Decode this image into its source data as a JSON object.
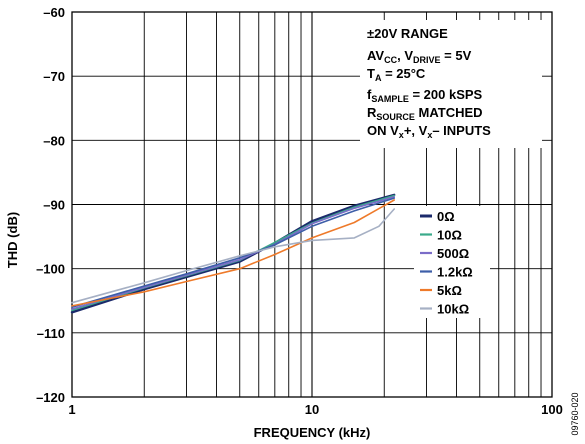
{
  "figure_code": "09760-020",
  "annotation": {
    "range": "±20V RANGE",
    "supply": {
      "a": "AV",
      "a_sub": "CC",
      "b": ", V",
      "b_sub": "DRIVE",
      "c": " = 5V"
    },
    "temp": {
      "a": "T",
      "a_sub": "A",
      "c": " = 25°C"
    },
    "sample": {
      "a": "f",
      "a_sub": "SAMPLE",
      "c": " = 200 kSPS"
    },
    "source": {
      "a": "R",
      "a_sub": "SOURCE",
      "c": " MATCHED"
    },
    "inputs": {
      "a": "ON V",
      "a_sub": "x",
      "b": "+, V",
      "b_sub": "x",
      "c": "– INPUTS"
    }
  },
  "chart_data": {
    "type": "line",
    "xscale": "log",
    "xlabel": "FREQUENCY (kHz)",
    "ylabel": "THD (dB)",
    "xlim": [
      1,
      100
    ],
    "ylim": [
      -120,
      -60
    ],
    "x_ticks": [
      {
        "value": 1,
        "label": "1"
      },
      {
        "value": 10,
        "label": "10"
      },
      {
        "value": 100,
        "label": "100"
      }
    ],
    "y_ticks": [
      {
        "value": -60,
        "label": "–60"
      },
      {
        "value": -70,
        "label": "–70"
      },
      {
        "value": -80,
        "label": "–80"
      },
      {
        "value": -90,
        "label": "–90"
      },
      {
        "value": -100,
        "label": "–100"
      },
      {
        "value": -110,
        "label": "–110"
      },
      {
        "value": -120,
        "label": "–120"
      }
    ],
    "grid": true,
    "legend_position": "right, mid-height",
    "series": [
      {
        "name": "0Ω",
        "color": "#1b2a6b",
        "width": 2.4,
        "points": [
          [
            1,
            -106.8
          ],
          [
            2,
            -103.2
          ],
          [
            3,
            -101.3
          ],
          [
            5,
            -98.9
          ],
          [
            7,
            -96.0
          ],
          [
            10,
            -92.6
          ],
          [
            15,
            -90.2
          ],
          [
            22,
            -88.5
          ]
        ]
      },
      {
        "name": "10Ω",
        "color": "#3aaa8a",
        "width": 1.6,
        "points": [
          [
            1,
            -106.5
          ],
          [
            2,
            -103.0
          ],
          [
            3,
            -101.1
          ],
          [
            5,
            -98.7
          ],
          [
            7,
            -95.9
          ],
          [
            10,
            -92.9
          ],
          [
            15,
            -90.4
          ],
          [
            22,
            -88.6
          ]
        ]
      },
      {
        "name": "500Ω",
        "color": "#7b6cc8",
        "width": 1.6,
        "points": [
          [
            1,
            -106.3
          ],
          [
            2,
            -102.9
          ],
          [
            3,
            -101.0
          ],
          [
            5,
            -98.6
          ],
          [
            7,
            -96.2
          ],
          [
            10,
            -93.0
          ],
          [
            15,
            -90.6
          ],
          [
            22,
            -88.8
          ]
        ]
      },
      {
        "name": "1.2kΩ",
        "color": "#3d5ea8",
        "width": 1.6,
        "points": [
          [
            1,
            -106.0
          ],
          [
            2,
            -102.7
          ],
          [
            3,
            -100.8
          ],
          [
            5,
            -98.3
          ],
          [
            7,
            -96.3
          ],
          [
            10,
            -93.4
          ],
          [
            15,
            -91.0
          ],
          [
            22,
            -89.0
          ]
        ]
      },
      {
        "name": "5kΩ",
        "color": "#ee7a2a",
        "width": 1.6,
        "points": [
          [
            1,
            -105.8
          ],
          [
            2,
            -103.6
          ],
          [
            3,
            -102.0
          ],
          [
            5,
            -100.0
          ],
          [
            7,
            -97.8
          ],
          [
            10,
            -95.2
          ],
          [
            15,
            -92.8
          ],
          [
            22,
            -89.3
          ]
        ]
      },
      {
        "name": "10kΩ",
        "color": "#a6b0c4",
        "width": 1.6,
        "points": [
          [
            1,
            -105.3
          ],
          [
            2,
            -102.2
          ],
          [
            3,
            -100.3
          ],
          [
            5,
            -98.0
          ],
          [
            7,
            -96.6
          ],
          [
            10,
            -95.6
          ],
          [
            15,
            -95.2
          ],
          [
            19,
            -93.4
          ],
          [
            22,
            -90.7
          ]
        ]
      }
    ]
  }
}
